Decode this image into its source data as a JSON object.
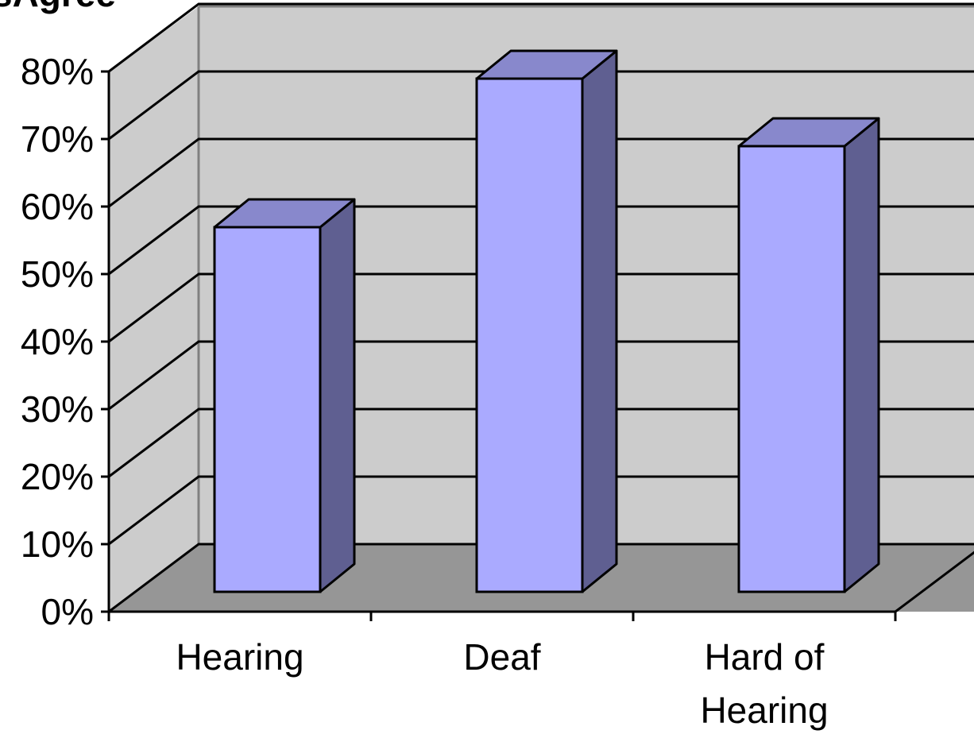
{
  "chart_data": {
    "type": "bar3d",
    "title": "sAgree",
    "categories": [
      "Hearing",
      "Deaf",
      "Hard of Hearing"
    ],
    "values": [
      54,
      76,
      66
    ],
    "color": "#aaaaff",
    "ylim": [
      0,
      80
    ],
    "yticks": [
      {
        "value": 0,
        "label": "0%"
      },
      {
        "value": 10,
        "label": "10%"
      },
      {
        "value": 20,
        "label": "20%"
      },
      {
        "value": 30,
        "label": "30%"
      },
      {
        "value": 40,
        "label": "40%"
      },
      {
        "value": 50,
        "label": "50%"
      },
      {
        "value": 60,
        "label": "60%"
      },
      {
        "value": 70,
        "label": "70%"
      },
      {
        "value": 80,
        "label": "80%"
      }
    ],
    "grid": true
  }
}
